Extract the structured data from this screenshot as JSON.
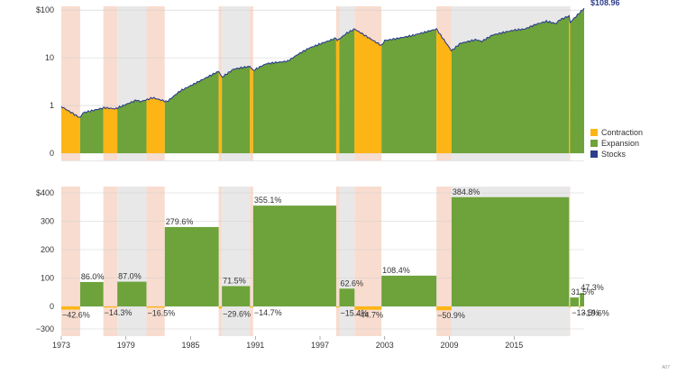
{
  "colors": {
    "contraction": "#fdb515",
    "expansion": "#6da33a",
    "stocks": "#2c3e8c",
    "band_contraction": "#f8dccf",
    "band_expansion": "#e8e8e8"
  },
  "legend": [
    {
      "name": "Contraction",
      "color": "#fdb515"
    },
    {
      "name": "Expansion",
      "color": "#6da33a"
    },
    {
      "name": "Stocks",
      "color": "#2c3e8c"
    }
  ],
  "end_value_label": "$108.96",
  "footnote": "A07",
  "chart_data": [
    {
      "type": "area",
      "scale": "log",
      "ylim": [
        0.1,
        120
      ],
      "yticks": [
        {
          "value": 100,
          "label": "$100"
        },
        {
          "value": 10,
          "label": "10"
        },
        {
          "value": 1,
          "label": "1"
        },
        {
          "value": 0.1,
          "label": "0"
        }
      ],
      "series": [
        {
          "name": "Stocks",
          "x": [
            1973,
            1974.75,
            1975,
            1977,
            1978,
            1980,
            1980.3,
            1981.5,
            1982.8,
            1984,
            1985,
            1986,
            1987.6,
            1987.9,
            1989,
            1990.5,
            1990.8,
            1992,
            1994,
            1995,
            1996,
            1998.5,
            1998.6,
            1999.5,
            2000.2,
            2002.7,
            2003,
            2004,
            2005.5,
            2007.8,
            2009.2,
            2010,
            2011.5,
            2012,
            2013,
            2015,
            2016,
            2017,
            2018,
            2018.9,
            2019.2,
            2020.1,
            2020.2,
            2021.5
          ],
          "values": [
            0.95,
            0.55,
            0.7,
            0.9,
            0.85,
            1.3,
            1.2,
            1.45,
            1.2,
            2.0,
            2.6,
            3.4,
            5.2,
            3.9,
            5.8,
            6.6,
            5.4,
            7.5,
            8.5,
            12,
            16,
            26,
            23,
            33,
            40,
            18,
            23,
            25,
            29,
            40,
            14,
            20,
            24,
            22,
            30,
            38,
            40,
            50,
            58,
            52,
            62,
            75,
            55,
            108.96
          ]
        }
      ],
      "periods": [
        {
          "type": "contraction",
          "start": 1973,
          "end": 1974.75
        },
        {
          "type": "expansion",
          "start": 1974.75,
          "end": 1976.9
        },
        {
          "type": "contraction",
          "start": 1976.9,
          "end": 1978.2
        },
        {
          "type": "expansion",
          "start": 1978.2,
          "end": 1980.9
        },
        {
          "type": "contraction",
          "start": 1980.9,
          "end": 1982.6
        },
        {
          "type": "expansion",
          "start": 1982.6,
          "end": 1987.6
        },
        {
          "type": "contraction",
          "start": 1987.6,
          "end": 1987.9
        },
        {
          "type": "expansion",
          "start": 1987.9,
          "end": 1990.5
        },
        {
          "type": "contraction",
          "start": 1990.5,
          "end": 1990.8
        },
        {
          "type": "expansion",
          "start": 1990.8,
          "end": 1998.5
        },
        {
          "type": "contraction",
          "start": 1998.5,
          "end": 1998.8
        },
        {
          "type": "expansion",
          "start": 1998.8,
          "end": 2000.2
        },
        {
          "type": "contraction",
          "start": 2000.2,
          "end": 2002.7
        },
        {
          "type": "expansion",
          "start": 2002.7,
          "end": 2007.8
        },
        {
          "type": "contraction",
          "start": 2007.8,
          "end": 2009.2
        },
        {
          "type": "expansion",
          "start": 2009.2,
          "end": 2020.1
        },
        {
          "type": "contraction",
          "start": 2020.1,
          "end": 2020.2
        },
        {
          "type": "expansion",
          "start": 2020.2,
          "end": 2021.5
        }
      ]
    },
    {
      "type": "bar",
      "ylim": [
        -300,
        400
      ],
      "yticks": [
        {
          "value": 400,
          "label": "$400"
        },
        {
          "value": 300,
          "label": "300"
        },
        {
          "value": 200,
          "label": "200"
        },
        {
          "value": 100,
          "label": "100"
        },
        {
          "value": 0,
          "label": "0"
        },
        {
          "value": -300,
          "label": "−300"
        }
      ],
      "xlim": [
        1973,
        2021.5
      ],
      "xticks": [
        "1973",
        "1979",
        "1985",
        "1991",
        "1997",
        "2003",
        "2009",
        "2015"
      ],
      "bars": [
        {
          "type": "contraction",
          "start": 1973,
          "end": 1974.75,
          "value": -42.6,
          "label": "−42.6%"
        },
        {
          "type": "expansion",
          "start": 1974.75,
          "end": 1976.9,
          "value": 86.0,
          "label": "86.0%"
        },
        {
          "type": "contraction",
          "start": 1976.9,
          "end": 1978.2,
          "value": -14.3,
          "label": "−14.3%"
        },
        {
          "type": "expansion",
          "start": 1978.2,
          "end": 1980.9,
          "value": 87.0,
          "label": "87.0%"
        },
        {
          "type": "contraction",
          "start": 1980.9,
          "end": 1982.6,
          "value": -16.5,
          "label": "−16.5%"
        },
        {
          "type": "expansion",
          "start": 1982.6,
          "end": 1987.6,
          "value": 279.6,
          "label": "279.6%"
        },
        {
          "type": "contraction",
          "start": 1987.6,
          "end": 1987.9,
          "value": -29.6,
          "label": "−29.6%"
        },
        {
          "type": "expansion",
          "start": 1987.9,
          "end": 1990.5,
          "value": 71.5,
          "label": "71.5%"
        },
        {
          "type": "contraction",
          "start": 1990.5,
          "end": 1990.8,
          "value": -14.7,
          "label": "−14.7%"
        },
        {
          "type": "expansion",
          "start": 1990.8,
          "end": 1998.5,
          "value": 355.1,
          "label": "355.1%"
        },
        {
          "type": "contraction",
          "start": 1998.5,
          "end": 1998.8,
          "value": -15.4,
          "label": "−15.4%"
        },
        {
          "type": "expansion",
          "start": 1998.8,
          "end": 2000.2,
          "value": 62.6,
          "label": "62.6%"
        },
        {
          "type": "contraction",
          "start": 2000.2,
          "end": 2002.7,
          "value": -44.7,
          "label": "−44.7%"
        },
        {
          "type": "expansion",
          "start": 2002.7,
          "end": 2007.8,
          "value": 108.4,
          "label": "108.4%"
        },
        {
          "type": "contraction",
          "start": 2007.8,
          "end": 2009.2,
          "value": -50.9,
          "label": "−50.9%"
        },
        {
          "type": "expansion",
          "start": 2009.2,
          "end": 2020.1,
          "value": 384.8,
          "label": "384.8%"
        },
        {
          "type": "contraction",
          "start": 2020.1,
          "end": 2020.2,
          "value": -13.5,
          "label": "−13.5%"
        },
        {
          "type": "expansion",
          "start": 2020.2,
          "end": 2021.0,
          "value": 31.5,
          "label": "31.5%"
        },
        {
          "type": "contraction",
          "start": 2021.0,
          "end": 2021.1,
          "value": -19.6,
          "label": "−19.6%"
        },
        {
          "type": "expansion",
          "start": 2021.1,
          "end": 2021.5,
          "value": 47.3,
          "label": "47.3%"
        }
      ]
    }
  ]
}
